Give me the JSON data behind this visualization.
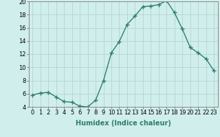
{
  "x": [
    0,
    1,
    2,
    3,
    4,
    5,
    6,
    7,
    8,
    9,
    10,
    11,
    12,
    13,
    14,
    15,
    16,
    17,
    18,
    19,
    20,
    21,
    22,
    23
  ],
  "y": [
    5.8,
    6.1,
    6.2,
    5.5,
    4.8,
    4.7,
    4.1,
    4.0,
    5.0,
    8.0,
    12.2,
    13.9,
    16.5,
    17.8,
    19.2,
    19.3,
    19.5,
    20.1,
    18.3,
    15.8,
    13.0,
    12.2,
    11.3,
    9.5
  ],
  "line_color": "#2e7d6e",
  "marker": "+",
  "marker_size": 4,
  "bg_color": "#d0eeec",
  "grid_color": "#b8d8d4",
  "xlabel": "Humidex (Indice chaleur)",
  "ylim": [
    4,
    20
  ],
  "xlim": [
    -0.5,
    23.5
  ],
  "yticks": [
    4,
    6,
    8,
    10,
    12,
    14,
    16,
    18,
    20
  ],
  "xticks": [
    0,
    1,
    2,
    3,
    4,
    5,
    6,
    7,
    8,
    9,
    10,
    11,
    12,
    13,
    14,
    15,
    16,
    17,
    18,
    19,
    20,
    21,
    22,
    23
  ],
  "xtick_labels": [
    "0",
    "1",
    "2",
    "3",
    "4",
    "5",
    "6",
    "7",
    "8",
    "9",
    "10",
    "11",
    "12",
    "13",
    "14",
    "15",
    "16",
    "17",
    "18",
    "19",
    "20",
    "21",
    "22",
    "23"
  ],
  "xlabel_fontsize": 7,
  "tick_fontsize": 6
}
